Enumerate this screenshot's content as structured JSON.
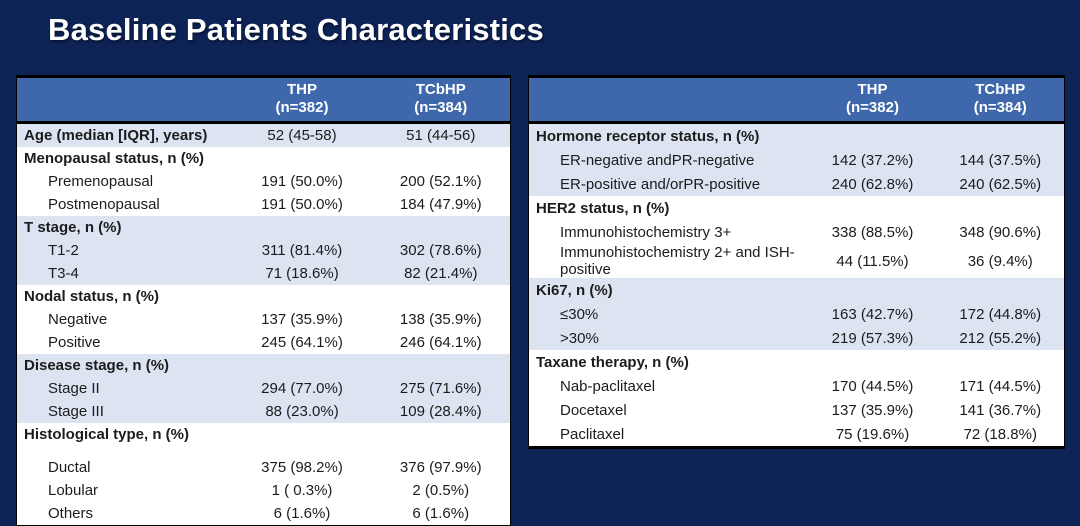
{
  "slide": {
    "title": "Baseline Patients Characteristics"
  },
  "colors": {
    "background": "#0d2356",
    "table_header_fill": "#3e68ab",
    "band_alt_fill": "#dce4f2",
    "band_plain_fill": "#ffffff",
    "header_text": "#ffffff",
    "body_text": "#1c1c1c",
    "border": "#000000"
  },
  "tables": [
    {
      "name": "left-baseline-table",
      "header": {
        "label_col": "",
        "col1": [
          "THP",
          "(n=382)"
        ],
        "col2": [
          "TCbHP",
          "(n=384)"
        ]
      },
      "rows": [
        {
          "label": "Age (median [IQR], years)",
          "v1": "52 (45-58)",
          "v2": "51 (44-56)",
          "band": "alt",
          "bold": true
        },
        {
          "label": "Menopausal status, n (%)",
          "v1": "",
          "v2": "",
          "band": "plain",
          "bold": true
        },
        {
          "label": "Premenopausal",
          "v1": "191 (50.0%)",
          "v2": "200 (52.1%)",
          "band": "plain",
          "indent": true
        },
        {
          "label": "Postmenopausal",
          "v1": "191 (50.0%)",
          "v2": "184 (47.9%)",
          "band": "plain",
          "indent": true
        },
        {
          "label": "T stage, n (%)",
          "v1": "",
          "v2": "",
          "band": "alt",
          "bold": true
        },
        {
          "label": "T1-2",
          "v1": "311 (81.4%)",
          "v2": "302 (78.6%)",
          "band": "alt",
          "indent": true
        },
        {
          "label": "T3-4",
          "v1": "71 (18.6%)",
          "v2": "82 (21.4%)",
          "band": "alt",
          "indent": true
        },
        {
          "label": "Nodal status, n (%)",
          "v1": "",
          "v2": "",
          "band": "plain",
          "bold": true
        },
        {
          "label": "Negative",
          "v1": "137 (35.9%)",
          "v2": "138 (35.9%)",
          "band": "plain",
          "indent": true
        },
        {
          "label": "Positive",
          "v1": "245 (64.1%)",
          "v2": "246 (64.1%)",
          "band": "plain",
          "indent": true
        },
        {
          "label": "Disease stage, n (%)",
          "v1": "",
          "v2": "",
          "band": "alt",
          "bold": true
        },
        {
          "label": "Stage II",
          "v1": "294 (77.0%)",
          "v2": "275 (71.6%)",
          "band": "alt",
          "indent": true
        },
        {
          "label": "Stage III",
          "v1": "88 (23.0%)",
          "v2": "109 (28.4%)",
          "band": "alt",
          "indent": true
        },
        {
          "label": "Histological type, n (%)",
          "v1": "",
          "v2": "",
          "band": "plain",
          "bold": true,
          "gap": true
        },
        {
          "label": "Ductal",
          "v1": "375 (98.2%)",
          "v2": "376 (97.9%)",
          "band": "plain",
          "indent": true
        },
        {
          "label": "Lobular",
          "v1": "1 ( 0.3%)",
          "v2": "2 (0.5%)",
          "band": "plain",
          "indent": true
        },
        {
          "label": "Others",
          "v1": "6 (1.6%)",
          "v2": "6 (1.6%)",
          "band": "plain",
          "indent": true
        }
      ]
    },
    {
      "name": "right-baseline-table",
      "header": {
        "label_col": "",
        "col1": [
          "THP",
          "(n=382)"
        ],
        "col2": [
          "TCbHP",
          "(n=384)"
        ]
      },
      "rows": [
        {
          "label": "Hormone receptor status, n (%)",
          "v1": "",
          "v2": "",
          "band": "alt",
          "bold": true
        },
        {
          "label": "ER-negative andPR-negative",
          "v1": "142 (37.2%)",
          "v2": "144 (37.5%)",
          "band": "alt",
          "indent": true
        },
        {
          "label": "ER-positive and/orPR-positive",
          "v1": "240 (62.8%)",
          "v2": "240 (62.5%)",
          "band": "alt",
          "indent": true
        },
        {
          "label": "HER2 status, n (%)",
          "v1": "",
          "v2": "",
          "band": "plain",
          "bold": true
        },
        {
          "label": "Immunohistochemistry 3+",
          "v1": "338 (88.5%)",
          "v2": "348 (90.6%)",
          "band": "plain",
          "indent": true
        },
        {
          "label": "Immunohistochemistry 2+ and ISH-positive",
          "v1": "44 (11.5%)",
          "v2": "36 (9.4%)",
          "band": "plain",
          "indent": true
        },
        {
          "label": "Ki67, n (%)",
          "v1": "",
          "v2": "",
          "band": "alt",
          "bold": true
        },
        {
          "label": "≤30%",
          "v1": "163 (42.7%)",
          "v2": "172 (44.8%)",
          "band": "alt",
          "indent": true
        },
        {
          "label": ">30%",
          "v1": "219 (57.3%)",
          "v2": "212 (55.2%)",
          "band": "alt",
          "indent": true
        },
        {
          "label": "Taxane therapy, n (%)",
          "v1": "",
          "v2": "",
          "band": "plain",
          "bold": true
        },
        {
          "label": "Nab-paclitaxel",
          "v1": "170 (44.5%)",
          "v2": "171 (44.5%)",
          "band": "plain",
          "indent": true
        },
        {
          "label": "Docetaxel",
          "v1": "137 (35.9%)",
          "v2": "141 (36.7%)",
          "band": "plain",
          "indent": true
        },
        {
          "label": "Paclitaxel",
          "v1": "75 (19.6%)",
          "v2": "72 (18.8%)",
          "band": "plain",
          "indent": true
        }
      ]
    }
  ]
}
